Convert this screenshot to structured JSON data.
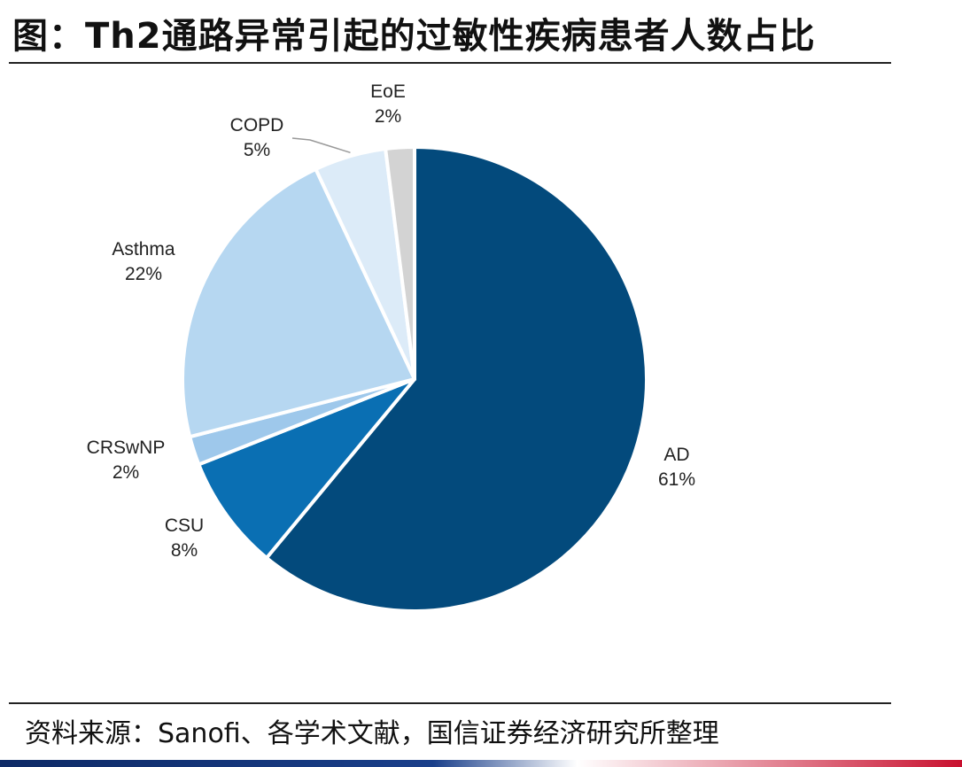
{
  "title": "图：Th2通路异常引起的过敏性疾病患者人数占比",
  "source": "资料来源：Sanofi、各学术文献，国信证券经济研究所整理",
  "chart_data": {
    "type": "pie",
    "title": "图：Th2通路异常引起的过敏性疾病患者人数占比",
    "slices": [
      {
        "name": "AD",
        "value": 61,
        "label": "61%",
        "color": "#034a7c"
      },
      {
        "name": "CSU",
        "value": 8,
        "label": "8%",
        "color": "#0a6fb3"
      },
      {
        "name": "CRSwNP",
        "value": 2,
        "label": "2%",
        "color": "#9ec8eb"
      },
      {
        "name": "Asthma",
        "value": 22,
        "label": "22%",
        "color": "#b6d7f1"
      },
      {
        "name": "COPD",
        "value": 5,
        "label": "5%",
        "color": "#dcebf8"
      },
      {
        "name": "EoE",
        "value": 2,
        "label": "2%",
        "color": "#d3d3d3"
      }
    ]
  }
}
